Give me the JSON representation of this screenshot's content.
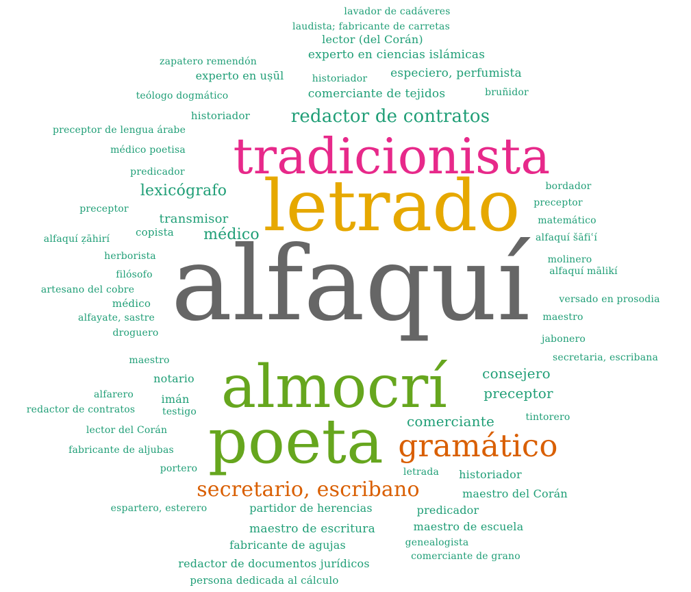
{
  "colors": {
    "gray": "#666666",
    "pink": "#e7298a",
    "gold": "#e6a800",
    "green": "#66a61e",
    "orange": "#d95f02",
    "teal": "#1b9e77"
  },
  "words": [
    {
      "text": "alfaquí",
      "weight": 100,
      "color": "gray"
    },
    {
      "text": "letrado",
      "weight": 58,
      "color": "gold"
    },
    {
      "text": "tradicionista",
      "weight": 48,
      "color": "pink"
    },
    {
      "text": "almocrí",
      "weight": 55,
      "color": "green"
    },
    {
      "text": "poeta",
      "weight": 56,
      "color": "green"
    },
    {
      "text": "gramático",
      "weight": 27,
      "color": "orange"
    },
    {
      "text": "secretario, escribano",
      "weight": 19,
      "color": "orange"
    },
    {
      "text": "redactor de contratos",
      "weight": 16,
      "color": "teal"
    },
    {
      "text": "lexicógrafo",
      "weight": 13,
      "color": "teal"
    },
    {
      "text": "médico",
      "weight": 13,
      "color": "teal"
    },
    {
      "text": "transmisor",
      "weight": 11,
      "color": "teal"
    },
    {
      "text": "consejero",
      "weight": 12,
      "color": "teal"
    },
    {
      "text": "preceptor",
      "weight": 12,
      "color": "teal"
    },
    {
      "text": "comerciante",
      "weight": 12,
      "color": "teal"
    },
    {
      "text": "lavador de cadáveres",
      "weight": 7,
      "color": "teal"
    },
    {
      "text": "laudista; fabricante de carretas",
      "weight": 7,
      "color": "teal"
    },
    {
      "text": "lector (del Corán)",
      "weight": 8,
      "color": "teal"
    },
    {
      "text": "zapatero remendón",
      "weight": 7,
      "color": "teal"
    },
    {
      "text": "experto en ciencias islámicas",
      "weight": 9,
      "color": "teal"
    },
    {
      "text": "experto en uṣūl",
      "weight": 8,
      "color": "teal"
    },
    {
      "text": "historiador",
      "weight": 7,
      "color": "teal"
    },
    {
      "text": "especiero, perfumista",
      "weight": 9,
      "color": "teal"
    },
    {
      "text": "teólogo dogmático",
      "weight": 7,
      "color": "teal"
    },
    {
      "text": "comerciante de tejidos",
      "weight": 9,
      "color": "teal"
    },
    {
      "text": "bruñidor",
      "weight": 7,
      "color": "teal"
    },
    {
      "text": "historiador",
      "weight": 8,
      "color": "teal"
    },
    {
      "text": "preceptor de lengua árabe",
      "weight": 7,
      "color": "teal"
    },
    {
      "text": "médico poetisa",
      "weight": 7,
      "color": "teal"
    },
    {
      "text": "predicador",
      "weight": 7,
      "color": "teal"
    },
    {
      "text": "bordador",
      "weight": 7,
      "color": "teal"
    },
    {
      "text": "preceptor",
      "weight": 7,
      "color": "teal"
    },
    {
      "text": "preceptor",
      "weight": 7,
      "color": "teal"
    },
    {
      "text": "matemático",
      "weight": 7,
      "color": "teal"
    },
    {
      "text": "copista",
      "weight": 8,
      "color": "teal"
    },
    {
      "text": "alfaquí ẓāhirí",
      "weight": 7,
      "color": "teal"
    },
    {
      "text": "alfaquí šāfiʿí",
      "weight": 7,
      "color": "teal"
    },
    {
      "text": "herborista",
      "weight": 7,
      "color": "teal"
    },
    {
      "text": "molinero",
      "weight": 7,
      "color": "teal"
    },
    {
      "text": "alfaquí mālikí",
      "weight": 7,
      "color": "teal"
    },
    {
      "text": "filósofo",
      "weight": 7,
      "color": "teal"
    },
    {
      "text": "artesano del cobre",
      "weight": 7,
      "color": "teal"
    },
    {
      "text": "versado en prosodia",
      "weight": 7,
      "color": "teal"
    },
    {
      "text": "médico",
      "weight": 7,
      "color": "teal"
    },
    {
      "text": "alfayate, sastre",
      "weight": 7,
      "color": "teal"
    },
    {
      "text": "maestro",
      "weight": 7,
      "color": "teal"
    },
    {
      "text": "droguero",
      "weight": 7,
      "color": "teal"
    },
    {
      "text": "jabonero",
      "weight": 7,
      "color": "teal"
    },
    {
      "text": "maestro",
      "weight": 7,
      "color": "teal"
    },
    {
      "text": "secretaria, escribana",
      "weight": 7,
      "color": "teal"
    },
    {
      "text": "notario",
      "weight": 8,
      "color": "teal"
    },
    {
      "text": "alfarero",
      "weight": 7,
      "color": "teal"
    },
    {
      "text": "imán",
      "weight": 8,
      "color": "teal"
    },
    {
      "text": "redactor de contratos",
      "weight": 7,
      "color": "teal"
    },
    {
      "text": "testigo",
      "weight": 7,
      "color": "teal"
    },
    {
      "text": "tintorero",
      "weight": 7,
      "color": "teal"
    },
    {
      "text": "lector del Corán",
      "weight": 7,
      "color": "teal"
    },
    {
      "text": "fabricante de aljubas",
      "weight": 7,
      "color": "teal"
    },
    {
      "text": "portero",
      "weight": 7,
      "color": "teal"
    },
    {
      "text": "letrada",
      "weight": 7,
      "color": "teal"
    },
    {
      "text": "historiador",
      "weight": 8,
      "color": "teal"
    },
    {
      "text": "maestro del Corán",
      "weight": 8,
      "color": "teal"
    },
    {
      "text": "espartero, esterero",
      "weight": 7,
      "color": "teal"
    },
    {
      "text": "partidor de herencias",
      "weight": 8,
      "color": "teal"
    },
    {
      "text": "predicador",
      "weight": 8,
      "color": "teal"
    },
    {
      "text": "maestro de escritura",
      "weight": 9,
      "color": "teal"
    },
    {
      "text": "maestro de escuela",
      "weight": 8,
      "color": "teal"
    },
    {
      "text": "genealogista",
      "weight": 7,
      "color": "teal"
    },
    {
      "text": "fabricante de agujas",
      "weight": 8,
      "color": "teal"
    },
    {
      "text": "comerciante de grano",
      "weight": 7,
      "color": "teal"
    },
    {
      "text": "redactor de documentos jurídicos",
      "weight": 8,
      "color": "teal"
    },
    {
      "text": "persona dedicada al cálculo",
      "weight": 7,
      "color": "teal"
    }
  ]
}
